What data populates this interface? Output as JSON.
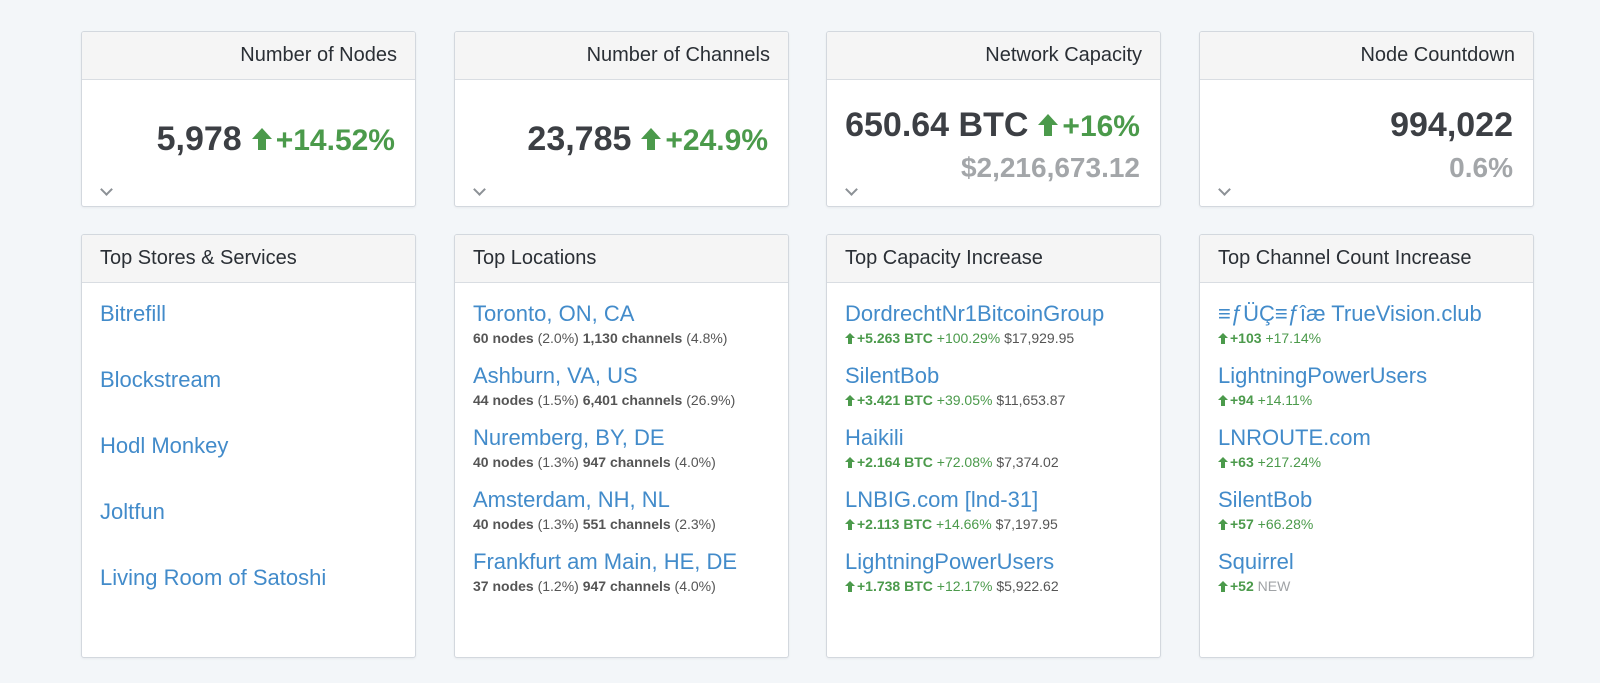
{
  "stats": {
    "nodes": {
      "title": "Number of Nodes",
      "value": "5,978",
      "delta": "+14.52%"
    },
    "channels": {
      "title": "Number of Channels",
      "value": "23,785",
      "delta": "+24.9%"
    },
    "capacity": {
      "title": "Network Capacity",
      "value": "650.64 BTC",
      "delta": "+16%",
      "usd": "$2,216,673.12"
    },
    "countdown": {
      "title": "Node Countdown",
      "value": "994,022",
      "sub": "0.6%"
    }
  },
  "stores": {
    "title": "Top Stores & Services",
    "items": [
      "Bitrefill",
      "Blockstream",
      "Hodl Monkey",
      "Joltfun",
      "Living Room of Satoshi"
    ]
  },
  "locations": {
    "title": "Top Locations",
    "items": [
      {
        "name": "Toronto, ON, CA",
        "nodes": "60 nodes",
        "nodes_pct": "(2.0%)",
        "channels": "1,130 channels",
        "channels_pct": "(4.8%)"
      },
      {
        "name": "Ashburn, VA, US",
        "nodes": "44 nodes",
        "nodes_pct": "(1.5%)",
        "channels": "6,401 channels",
        "channels_pct": "(26.9%)"
      },
      {
        "name": "Nuremberg, BY, DE",
        "nodes": "40 nodes",
        "nodes_pct": "(1.3%)",
        "channels": "947 channels",
        "channels_pct": "(4.0%)"
      },
      {
        "name": "Amsterdam, NH, NL",
        "nodes": "40 nodes",
        "nodes_pct": "(1.3%)",
        "channels": "551 channels",
        "channels_pct": "(2.3%)"
      },
      {
        "name": "Frankfurt am Main, HE, DE",
        "nodes": "37 nodes",
        "nodes_pct": "(1.2%)",
        "channels": "947 channels",
        "channels_pct": "(4.0%)"
      }
    ]
  },
  "capacity_increase": {
    "title": "Top Capacity Increase",
    "items": [
      {
        "name": "DordrechtNr1BitcoinGroup",
        "btc": "+5.263 BTC",
        "pct": "+100.29%",
        "usd": "$17,929.95"
      },
      {
        "name": "SilentBob",
        "btc": "+3.421 BTC",
        "pct": "+39.05%",
        "usd": "$11,653.87"
      },
      {
        "name": "Haikili",
        "btc": "+2.164 BTC",
        "pct": "+72.08%",
        "usd": "$7,374.02"
      },
      {
        "name": "LNBIG.com [lnd-31]",
        "btc": "+2.113 BTC",
        "pct": "+14.66%",
        "usd": "$7,197.95"
      },
      {
        "name": "LightningPowerUsers",
        "btc": "+1.738 BTC",
        "pct": "+12.17%",
        "usd": "$5,922.62"
      }
    ]
  },
  "channel_increase": {
    "title": "Top Channel Count Increase",
    "items": [
      {
        "name": "≡ƒÜÇ≡ƒîæ TrueVision.club",
        "count": "+103",
        "pct": "+17.14%"
      },
      {
        "name": "LightningPowerUsers",
        "count": "+94",
        "pct": "+14.11%"
      },
      {
        "name": "LNROUTE.com",
        "count": "+63",
        "pct": "+217.24%"
      },
      {
        "name": "SilentBob",
        "count": "+57",
        "pct": "+66.28%"
      },
      {
        "name": "Squirrel",
        "count": "+52",
        "pct": "NEW"
      }
    ]
  },
  "colors": {
    "accent_link": "#428bca",
    "positive": "#4b9a4b",
    "muted": "#a3a6a9"
  }
}
